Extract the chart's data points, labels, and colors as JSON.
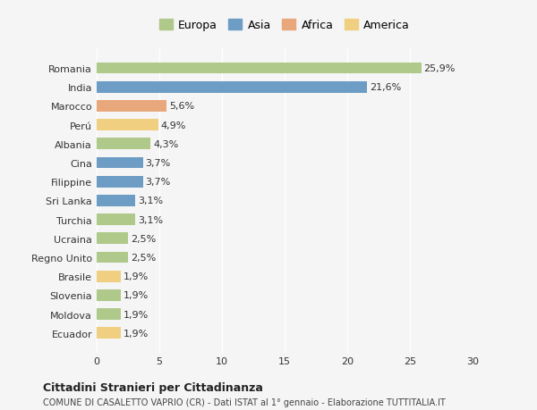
{
  "countries": [
    "Romania",
    "India",
    "Marocco",
    "Perú",
    "Albania",
    "Cina",
    "Filippine",
    "Sri Lanka",
    "Turchia",
    "Ucraina",
    "Regno Unito",
    "Brasile",
    "Slovenia",
    "Moldova",
    "Ecuador"
  ],
  "values": [
    25.9,
    21.6,
    5.6,
    4.9,
    4.3,
    3.7,
    3.7,
    3.1,
    3.1,
    2.5,
    2.5,
    1.9,
    1.9,
    1.9,
    1.9
  ],
  "labels": [
    "25,9%",
    "21,6%",
    "5,6%",
    "4,9%",
    "4,3%",
    "3,7%",
    "3,7%",
    "3,1%",
    "3,1%",
    "2,5%",
    "2,5%",
    "1,9%",
    "1,9%",
    "1,9%",
    "1,9%"
  ],
  "continents": [
    "Europa",
    "Asia",
    "Africa",
    "America",
    "Europa",
    "Asia",
    "Asia",
    "Asia",
    "Europa",
    "Europa",
    "Europa",
    "America",
    "Europa",
    "Europa",
    "America"
  ],
  "colors": {
    "Europa": "#aec98a",
    "Asia": "#6d9dc5",
    "Africa": "#e8a87c",
    "America": "#f0d080"
  },
  "legend_colors": {
    "Europa": "#aec98a",
    "Asia": "#6d9dc5",
    "Africa": "#e8a87c",
    "America": "#f0d080"
  },
  "xlim": [
    0,
    30
  ],
  "xticks": [
    0,
    5,
    10,
    15,
    20,
    25,
    30
  ],
  "title": "Cittadini Stranieri per Cittadinanza",
  "subtitle": "COMUNE DI CASALETTO VAPRIO (CR) - Dati ISTAT al 1° gennaio - Elaborazione TUTTITALIA.IT",
  "background_color": "#f5f5f5",
  "bar_background": "#ffffff",
  "grid_color": "#ffffff",
  "label_fontsize": 8,
  "tick_fontsize": 8
}
